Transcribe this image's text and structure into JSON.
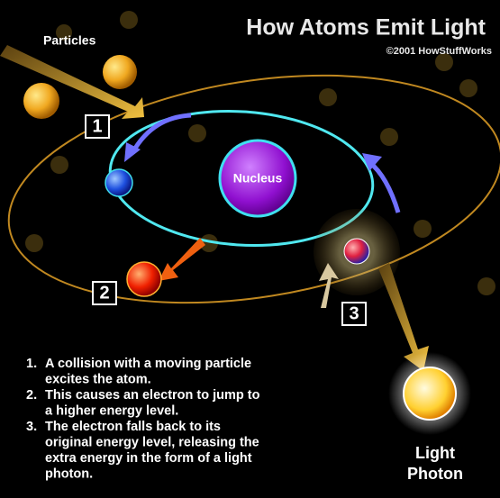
{
  "header": {
    "title": "How Atoms Emit Light",
    "credit": "©2001 HowStuffWorks"
  },
  "labels": {
    "particles": "Particles",
    "nucleus": "Nucleus",
    "photon": [
      "Light",
      "Photon"
    ]
  },
  "markers": [
    "1",
    "2",
    "3"
  ],
  "steps": [
    {
      "number": "1.",
      "lines": [
        "A collision with a moving particle",
        "excites the atom."
      ]
    },
    {
      "number": "2.",
      "lines": [
        "This causes an electron to jump to",
        "a higher energy level."
      ]
    },
    {
      "number": "3.",
      "lines": [
        "The electron falls back to its",
        "original energy level, releasing the",
        "extra energy in the form of a light",
        "photon."
      ]
    }
  ]
}
